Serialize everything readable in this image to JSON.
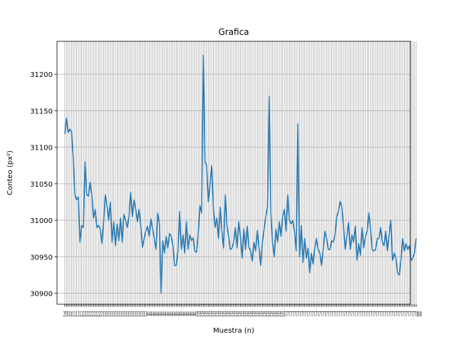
{
  "chart_data": {
    "type": "line",
    "title": "Grafica",
    "xlabel": "Muestra (n)",
    "ylabel": "Conteo (px²)",
    "xlim": [
      -4.6,
      204.6
    ],
    "ylim": [
      30885,
      31245
    ],
    "yticks": [
      30900,
      30950,
      31000,
      31050,
      31100,
      31150,
      31200
    ],
    "grid": true,
    "x_tick_label_text": "2551011111122222222222333333333333333333333333344444444444444444444444444445555555555555555555555555555555555555555555555555577777777777777777777777777777777777777777777777777777777777777777777777777800",
    "series": [
      {
        "color": "#1f77b4",
        "x_start": 0,
        "x_step": 1,
        "values": [
          31118,
          31140,
          31120,
          31125,
          31121,
          31085,
          31035,
          31028,
          31032,
          30970,
          30993,
          30990,
          31080,
          31035,
          31033,
          31052,
          31035,
          31003,
          31015,
          30990,
          30993,
          30988,
          30968,
          30998,
          31035,
          31020,
          31000,
          31025,
          30970,
          30998,
          30965,
          30995,
          30972,
          31003,
          30970,
          31008,
          31000,
          30990,
          31005,
          31038,
          31005,
          31028,
          31015,
          30998,
          31015,
          30992,
          30963,
          30975,
          30985,
          30992,
          30978,
          31002,
          30988,
          30975,
          30960,
          31010,
          30996,
          30900,
          30972,
          30955,
          30978,
          30962,
          30982,
          30978,
          30966,
          30938,
          30938,
          30958,
          31012,
          30960,
          30980,
          30955,
          30998,
          30960,
          30980,
          30972,
          30976,
          30958,
          30956,
          30982,
          31020,
          31010,
          31226,
          31080,
          31075,
          31025,
          31050,
          31075,
          31015,
          30990,
          31003,
          30975,
          31018,
          30985,
          30962,
          31035,
          30993,
          30978,
          30960,
          30962,
          30970,
          30990,
          30962,
          30998,
          30978,
          30948,
          30988,
          30960,
          30992,
          30963,
          30958,
          30944,
          30970,
          30958,
          30986,
          30962,
          30938,
          30970,
          30988,
          31005,
          31018,
          31170,
          31010,
          30970,
          30950,
          30988,
          30970,
          30998,
          30978,
          31005,
          31015,
          30985,
          31035,
          31000,
          30995,
          31000,
          30985,
          30958,
          31132,
          30950,
          30993,
          30942,
          30975,
          30948,
          30962,
          30928,
          30955,
          30940,
          30962,
          30975,
          30960,
          30955,
          30938,
          30960,
          30985,
          30975,
          30960,
          30960,
          30972,
          30970,
          30980,
          31005,
          31012,
          31026,
          31018,
          30992,
          30960,
          30978,
          30997,
          30960,
          30980,
          30970,
          30992,
          30945,
          30968,
          30952,
          30990,
          30962,
          30978,
          30985,
          31010,
          30988,
          30960,
          30958,
          30960,
          30975,
          30975,
          30990,
          30970,
          30965,
          30985,
          30958,
          30980,
          31000,
          30945,
          30955,
          30948,
          30928,
          30925,
          30945,
          30975,
          30958,
          30968,
          30960,
          30965,
          30945,
          30948,
          30955,
          30975
        ]
      }
    ]
  }
}
